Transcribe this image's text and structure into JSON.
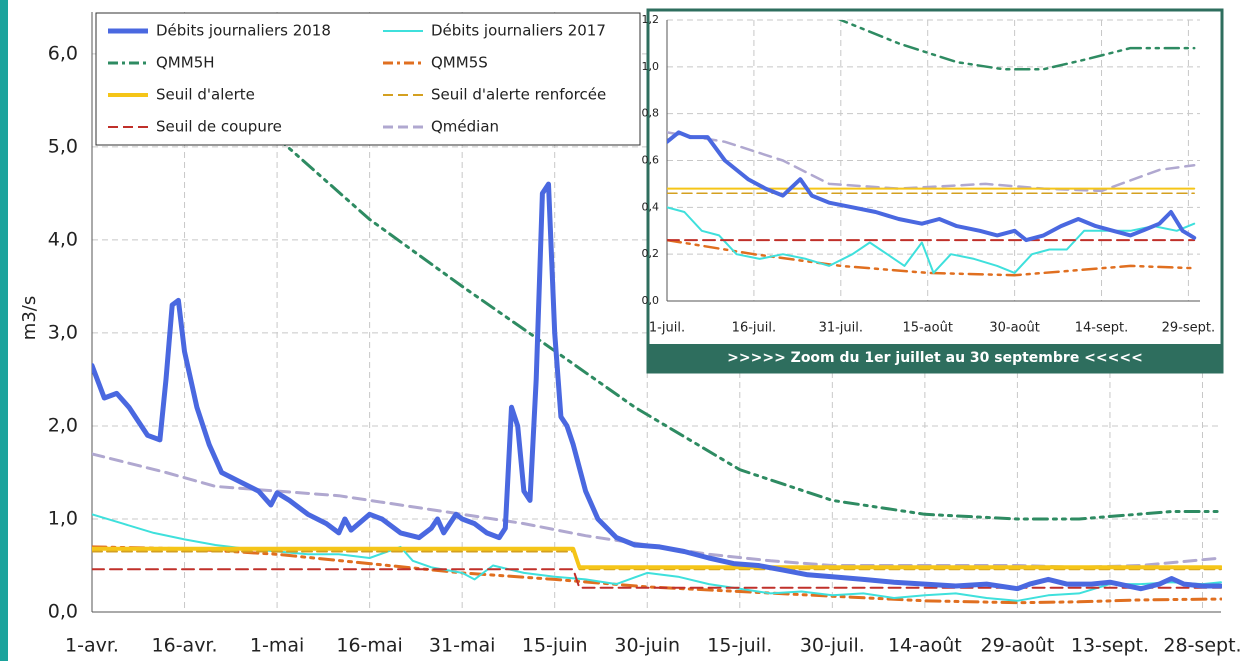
{
  "chart_data": [
    {
      "type": "line",
      "y_label": "m3/s",
      "xlim": [
        0,
        183
      ],
      "ylim": [
        0,
        6.45
      ],
      "xticks": [
        {
          "value": 0,
          "label": "1-avr."
        },
        {
          "value": 15,
          "label": "16-avr."
        },
        {
          "value": 30,
          "label": "1-mai"
        },
        {
          "value": 45,
          "label": "16-mai"
        },
        {
          "value": 60,
          "label": "31-mai"
        },
        {
          "value": 75,
          "label": "15-juin"
        },
        {
          "value": 90,
          "label": "30-juin"
        },
        {
          "value": 105,
          "label": "15-juil."
        },
        {
          "value": 120,
          "label": "30-juil."
        },
        {
          "value": 135,
          "label": "14-août"
        },
        {
          "value": 150,
          "label": "29-août"
        },
        {
          "value": 165,
          "label": "13-sept."
        },
        {
          "value": 180,
          "label": "28-sept."
        }
      ],
      "yticks": [
        {
          "value": 0,
          "label": "0,0"
        },
        {
          "value": 1,
          "label": "1,0"
        },
        {
          "value": 2,
          "label": "2,0"
        },
        {
          "value": 3,
          "label": "3,0"
        },
        {
          "value": 4,
          "label": "4,0"
        },
        {
          "value": 5,
          "label": "5,0"
        },
        {
          "value": 6,
          "label": "6,0"
        }
      ],
      "grid": true,
      "legend": "upper left",
      "series": [
        {
          "name": "Débits journaliers 2018",
          "color": "#4a68e0",
          "x": [
            0,
            2,
            4,
            6,
            9,
            11,
            12,
            13,
            14,
            15,
            17,
            19,
            21,
            24,
            27,
            29,
            30,
            32,
            35,
            38,
            40,
            41,
            42,
            45,
            47,
            50,
            53,
            55,
            56,
            57,
            59,
            60,
            62,
            64,
            66,
            67,
            68,
            69,
            70,
            71,
            72,
            73,
            74,
            75,
            76,
            77,
            78,
            80,
            82,
            85,
            88,
            92,
            96,
            100,
            104,
            108,
            112,
            116,
            120,
            125,
            130,
            135,
            140,
            145,
            150,
            152,
            155,
            158,
            162,
            165,
            170,
            173,
            175,
            177,
            180,
            183
          ],
          "values": [
            2.65,
            2.3,
            2.35,
            2.2,
            1.9,
            1.85,
            2.5,
            3.3,
            3.35,
            2.8,
            2.2,
            1.8,
            1.5,
            1.4,
            1.3,
            1.15,
            1.28,
            1.2,
            1.05,
            0.95,
            0.85,
            1.0,
            0.88,
            1.05,
            1.0,
            0.85,
            0.8,
            0.9,
            1.0,
            0.85,
            1.05,
            1.0,
            0.95,
            0.85,
            0.8,
            0.9,
            2.2,
            2.0,
            1.3,
            1.2,
            2.5,
            4.5,
            4.6,
            3.0,
            2.1,
            2.0,
            1.8,
            1.3,
            1.0,
            0.8,
            0.72,
            0.7,
            0.65,
            0.58,
            0.52,
            0.5,
            0.45,
            0.4,
            0.38,
            0.35,
            0.32,
            0.3,
            0.28,
            0.3,
            0.25,
            0.3,
            0.35,
            0.3,
            0.3,
            0.32,
            0.25,
            0.3,
            0.36,
            0.3,
            0.28,
            0.28
          ]
        },
        {
          "name": "Débits journaliers 2017",
          "color": "#3fe0dc",
          "x": [
            0,
            5,
            10,
            15,
            20,
            25,
            30,
            35,
            40,
            45,
            50,
            52,
            55,
            60,
            62,
            65,
            70,
            75,
            80,
            85,
            90,
            95,
            100,
            105,
            110,
            115,
            120,
            125,
            130,
            135,
            140,
            145,
            150,
            155,
            160,
            165,
            170,
            175,
            180,
            183
          ],
          "values": [
            1.05,
            0.95,
            0.85,
            0.78,
            0.72,
            0.68,
            0.65,
            0.62,
            0.62,
            0.58,
            0.7,
            0.55,
            0.48,
            0.42,
            0.35,
            0.5,
            0.42,
            0.38,
            0.35,
            0.3,
            0.42,
            0.38,
            0.3,
            0.25,
            0.2,
            0.22,
            0.18,
            0.2,
            0.15,
            0.18,
            0.2,
            0.15,
            0.12,
            0.18,
            0.2,
            0.3,
            0.3,
            0.32,
            0.3,
            0.32
          ]
        },
        {
          "name": "QMM5H",
          "color": "#2e8b62",
          "x": [
            25,
            30,
            45,
            60,
            73,
            88,
            105,
            120,
            135,
            150,
            160,
            175,
            183
          ],
          "values": [
            5.4,
            5.1,
            4.22,
            3.5,
            2.9,
            2.2,
            1.53,
            1.2,
            1.05,
            1.0,
            1.0,
            1.08,
            1.08
          ]
        },
        {
          "name": "QMM5S",
          "color": "#e06f20",
          "x": [
            0,
            15,
            30,
            45,
            60,
            75,
            90,
            105,
            120,
            135,
            150,
            160,
            170,
            183
          ],
          "values": [
            0.7,
            0.68,
            0.62,
            0.52,
            0.42,
            0.35,
            0.27,
            0.22,
            0.17,
            0.12,
            0.1,
            0.11,
            0.13,
            0.14
          ]
        },
        {
          "name": "Seuil d'alerte",
          "color": "#f5c518",
          "x": [
            0,
            78,
            79,
            183
          ],
          "values": [
            0.68,
            0.68,
            0.48,
            0.48
          ]
        },
        {
          "name": "Seuil d'alerte renforcée",
          "color": "#d4a020",
          "x": [
            0,
            78,
            79,
            183
          ],
          "values": [
            0.65,
            0.65,
            0.46,
            0.46
          ]
        },
        {
          "name": "Seuil de coupure",
          "color": "#c0302a",
          "x": [
            0,
            78,
            79,
            183
          ],
          "values": [
            0.46,
            0.46,
            0.26,
            0.26
          ]
        },
        {
          "name": "Qmédian",
          "color": "#b0a8d0",
          "x": [
            0,
            12,
            20,
            30,
            40,
            50,
            60,
            70,
            80,
            90,
            100,
            110,
            120,
            135,
            150,
            160,
            170,
            183
          ],
          "values": [
            1.7,
            1.5,
            1.35,
            1.3,
            1.25,
            1.15,
            1.05,
            0.95,
            0.82,
            0.72,
            0.62,
            0.55,
            0.5,
            0.5,
            0.5,
            0.48,
            0.5,
            0.58
          ]
        }
      ]
    },
    {
      "type": "line",
      "title": ">>>>> Zoom du 1er juillet au 30 septembre <<<<<",
      "xlim": [
        0,
        92
      ],
      "ylim": [
        0,
        1.2
      ],
      "xticks": [
        {
          "value": 0,
          "label": "1-juil."
        },
        {
          "value": 15,
          "label": "16-juil."
        },
        {
          "value": 30,
          "label": "31-juil."
        },
        {
          "value": 45,
          "label": "15-août"
        },
        {
          "value": 60,
          "label": "30-août"
        },
        {
          "value": 75,
          "label": "14-sept."
        },
        {
          "value": 90,
          "label": "29-sept."
        }
      ],
      "yticks": [
        {
          "value": 0,
          "label": "0,0"
        },
        {
          "value": 0.2,
          "label": "0,2"
        },
        {
          "value": 0.4,
          "label": "0,4"
        },
        {
          "value": 0.6,
          "label": "0,6"
        },
        {
          "value": 0.8,
          "label": "0,8"
        },
        {
          "value": 1,
          "label": "1,0"
        },
        {
          "value": 1.2,
          "label": "1,2"
        }
      ],
      "grid": true,
      "series": [
        {
          "color": "#4a68e0",
          "x": [
            0,
            2,
            4,
            7,
            10,
            14,
            17,
            20,
            23,
            25,
            28,
            32,
            36,
            40,
            44,
            47,
            50,
            54,
            57,
            60,
            62,
            65,
            68,
            71,
            74,
            77,
            80,
            82,
            85,
            87,
            89,
            91
          ],
          "values": [
            0.68,
            0.72,
            0.7,
            0.7,
            0.6,
            0.52,
            0.48,
            0.45,
            0.52,
            0.45,
            0.42,
            0.4,
            0.38,
            0.35,
            0.33,
            0.35,
            0.32,
            0.3,
            0.28,
            0.3,
            0.26,
            0.28,
            0.32,
            0.35,
            0.32,
            0.3,
            0.28,
            0.3,
            0.33,
            0.38,
            0.3,
            0.27
          ]
        },
        {
          "color": "#3fe0dc",
          "x": [
            0,
            3,
            6,
            9,
            12,
            16,
            20,
            24,
            28,
            32,
            35,
            38,
            41,
            44,
            46,
            49,
            53,
            57,
            60,
            63,
            66,
            69,
            72,
            76,
            80,
            84,
            88,
            91
          ],
          "values": [
            0.4,
            0.38,
            0.3,
            0.28,
            0.2,
            0.18,
            0.2,
            0.18,
            0.15,
            0.2,
            0.25,
            0.2,
            0.15,
            0.25,
            0.12,
            0.2,
            0.18,
            0.15,
            0.12,
            0.2,
            0.22,
            0.22,
            0.3,
            0.3,
            0.3,
            0.32,
            0.3,
            0.33
          ]
        },
        {
          "color": "#2e8b62",
          "x": [
            0,
            30,
            40,
            50,
            58,
            65,
            72,
            80,
            91
          ],
          "values": [
            1.6,
            1.2,
            1.1,
            1.02,
            0.99,
            0.99,
            1.03,
            1.08,
            1.08
          ]
        },
        {
          "color": "#e06f20",
          "x": [
            0,
            15,
            30,
            45,
            60,
            70,
            80,
            91
          ],
          "values": [
            0.26,
            0.2,
            0.15,
            0.12,
            0.11,
            0.13,
            0.15,
            0.14
          ]
        },
        {
          "color": "#f5c518",
          "x": [
            0,
            91
          ],
          "values": [
            0.48,
            0.48
          ]
        },
        {
          "color": "#d4a020",
          "x": [
            0,
            91
          ],
          "values": [
            0.46,
            0.46
          ]
        },
        {
          "color": "#c0302a",
          "x": [
            0,
            91
          ],
          "values": [
            0.26,
            0.26
          ]
        },
        {
          "color": "#b0a8d0",
          "x": [
            0,
            10,
            20,
            28,
            40,
            55,
            65,
            75,
            85,
            91
          ],
          "values": [
            0.72,
            0.68,
            0.6,
            0.5,
            0.48,
            0.5,
            0.48,
            0.47,
            0.56,
            0.58
          ]
        }
      ]
    }
  ]
}
